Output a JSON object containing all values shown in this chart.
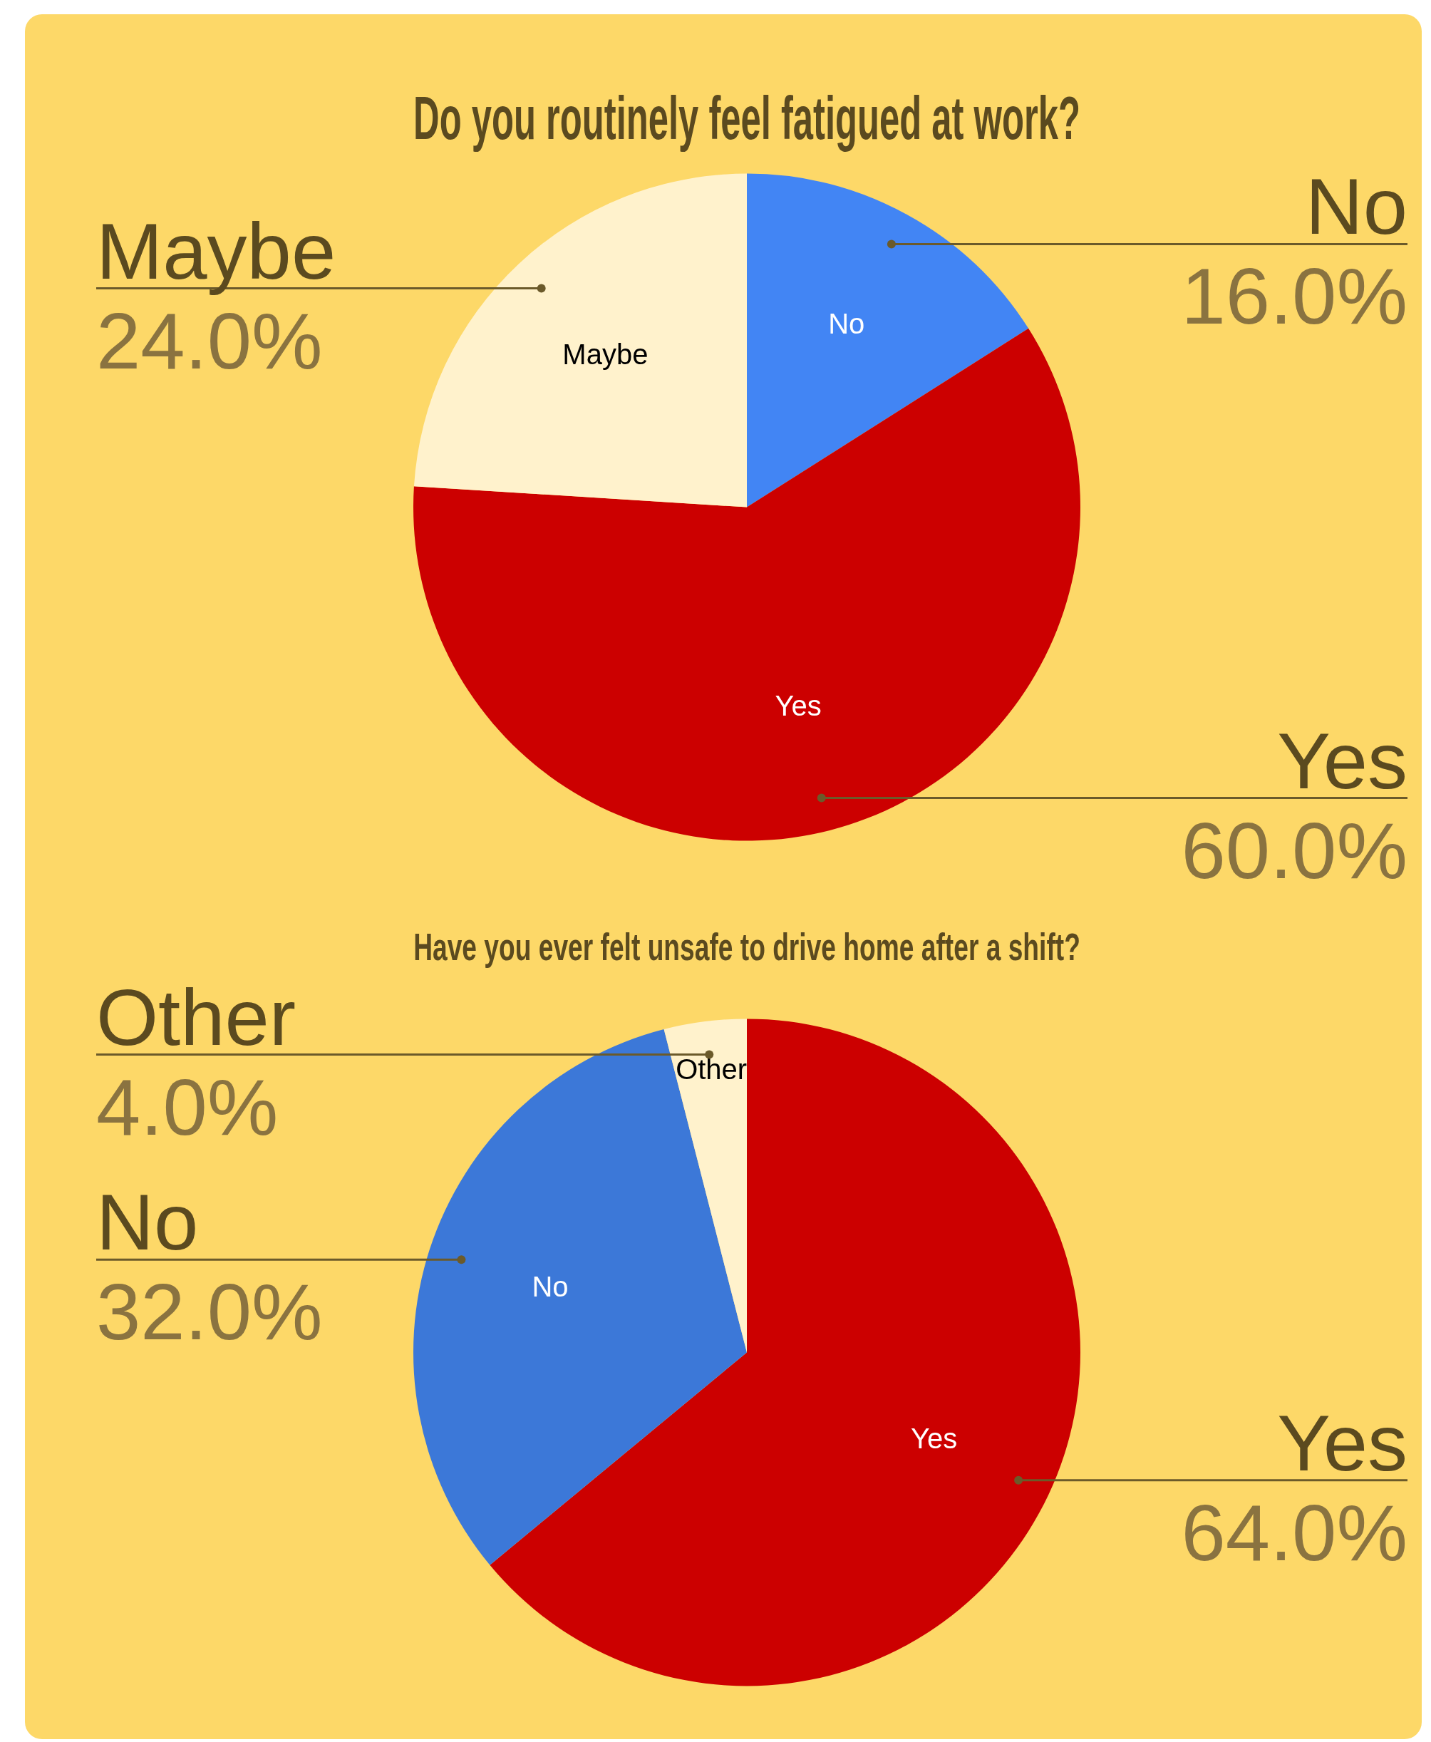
{
  "chart_data": [
    {
      "type": "pie",
      "title": "Do you routinely feel fatigued at work?",
      "categories": [
        "No",
        "Yes",
        "Maybe"
      ],
      "values": [
        16,
        60,
        24
      ],
      "colors": [
        "#4285f4",
        "#cc0000",
        "#fff2cc"
      ],
      "value_labels": [
        "16.0%",
        "60.0%",
        "24.0%"
      ]
    },
    {
      "type": "pie",
      "title": "Have you ever felt unsafe to drive home after a shift?",
      "categories": [
        "Yes",
        "No",
        "Other"
      ],
      "values": [
        64,
        32,
        4
      ],
      "colors": [
        "#cc0000",
        "#3c78d8",
        "#fff2cc"
      ],
      "value_labels": [
        "64.0%",
        "32.0%",
        "4.0%"
      ]
    }
  ]
}
